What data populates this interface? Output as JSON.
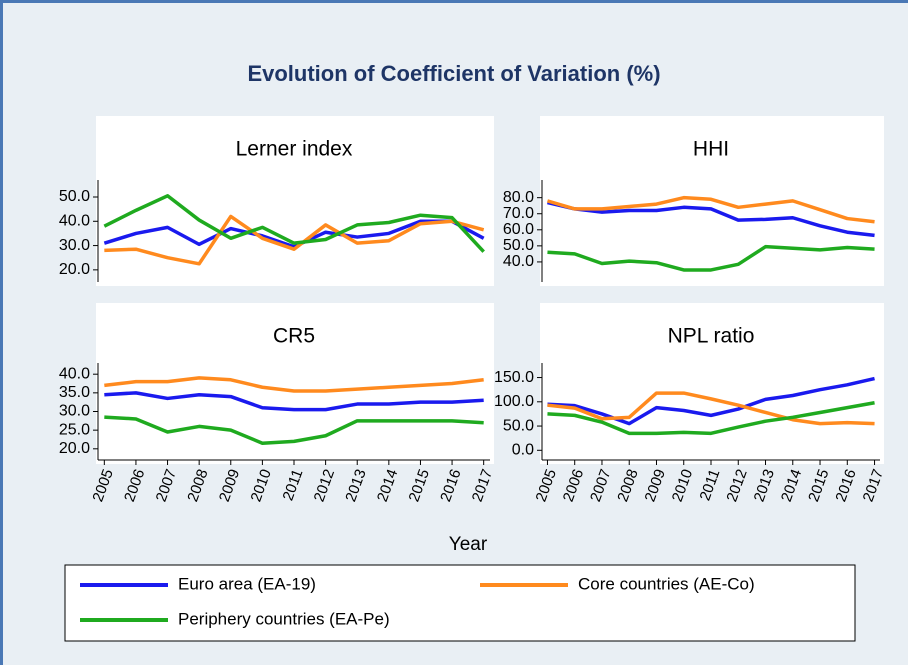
{
  "title": "Evolution of Coefficient of Variation (%)",
  "xlabel": "Year",
  "chart_data": [
    {
      "type": "line",
      "title": "Lerner index",
      "x": [
        2005,
        2006,
        2007,
        2008,
        2009,
        2010,
        2011,
        2012,
        2013,
        2014,
        2015,
        2016,
        2017
      ],
      "xlim": [
        2004.8,
        2017.2
      ],
      "ylim": [
        15,
        57
      ],
      "yticks": [
        {
          "value": 20,
          "label": "20.0"
        },
        {
          "value": 30,
          "label": "30.0"
        },
        {
          "value": 40,
          "label": "40.0"
        },
        {
          "value": 50,
          "label": "50.0"
        }
      ],
      "series": [
        {
          "name": "Euro area (EA-19)",
          "color": "#1a1aee",
          "values": [
            31,
            35,
            37.5,
            30.5,
            37,
            34,
            29.5,
            35.5,
            33.5,
            35,
            40,
            40,
            33
          ]
        },
        {
          "name": "Core countries (AE-Co)",
          "color": "#ff8a1e",
          "values": [
            28,
            28.5,
            25,
            22.5,
            42,
            33,
            28.5,
            38.5,
            31,
            32,
            39,
            40,
            36.5
          ]
        },
        {
          "name": "Periphery countries (EA-Pe)",
          "color": "#1faa1f",
          "values": [
            38,
            44.5,
            50.5,
            40.5,
            33,
            37.5,
            31,
            32.5,
            38.5,
            39.5,
            42.5,
            41.5,
            27.5
          ]
        }
      ]
    },
    {
      "type": "line",
      "title": "HHI",
      "x": [
        2005,
        2006,
        2007,
        2008,
        2009,
        2010,
        2011,
        2012,
        2013,
        2014,
        2015,
        2016,
        2017
      ],
      "xlim": [
        2004.8,
        2017.2
      ],
      "ylim": [
        27.5,
        91
      ],
      "yticks": [
        {
          "value": 40,
          "label": "40.0"
        },
        {
          "value": 50,
          "label": "50.0"
        },
        {
          "value": 60,
          "label": "60.0"
        },
        {
          "value": 70,
          "label": "70.0"
        },
        {
          "value": 80,
          "label": "80.0"
        }
      ],
      "series": [
        {
          "name": "Euro area (EA-19)",
          "color": "#1a1aee",
          "values": [
            77,
            73,
            71,
            72,
            72,
            74,
            73,
            66,
            66.5,
            67.5,
            62.5,
            58.5,
            56.5
          ]
        },
        {
          "name": "Core countries (AE-Co)",
          "color": "#ff8a1e",
          "values": [
            78,
            73,
            73,
            74.5,
            76,
            80,
            79,
            74,
            76,
            78,
            72.5,
            67,
            65
          ]
        },
        {
          "name": "Periphery countries (EA-Pe)",
          "color": "#1faa1f",
          "values": [
            46,
            45,
            39,
            40.5,
            39.5,
            35,
            35,
            38.5,
            49.5,
            48.5,
            47.5,
            49,
            48
          ]
        }
      ]
    },
    {
      "type": "line",
      "title": "CR5",
      "x": [
        2005,
        2006,
        2007,
        2008,
        2009,
        2010,
        2011,
        2012,
        2013,
        2014,
        2015,
        2016,
        2017
      ],
      "xlim": [
        2004.8,
        2017.2
      ],
      "ylim": [
        17,
        43
      ],
      "xticks": [
        2005,
        2006,
        2007,
        2008,
        2009,
        2010,
        2011,
        2012,
        2013,
        2014,
        2015,
        2016,
        2017
      ],
      "yticks": [
        {
          "value": 20,
          "label": "20.0"
        },
        {
          "value": 25,
          "label": "25.0"
        },
        {
          "value": 30,
          "label": "30.0"
        },
        {
          "value": 35,
          "label": "35.0"
        },
        {
          "value": 40,
          "label": "40.0"
        }
      ],
      "series": [
        {
          "name": "Euro area (EA-19)",
          "color": "#1a1aee",
          "values": [
            34.5,
            35,
            33.5,
            34.5,
            34,
            31,
            30.5,
            30.5,
            32,
            32,
            32.5,
            32.5,
            33
          ]
        },
        {
          "name": "Core countries (AE-Co)",
          "color": "#ff8a1e",
          "values": [
            37,
            38,
            38,
            39,
            38.5,
            36.5,
            35.5,
            35.5,
            36,
            36.5,
            37,
            37.5,
            38.5
          ]
        },
        {
          "name": "Periphery countries (EA-Pe)",
          "color": "#1faa1f",
          "values": [
            28.5,
            28,
            24.5,
            26,
            25,
            21.5,
            22,
            23.5,
            27.5,
            27.5,
            27.5,
            27.5,
            27
          ]
        }
      ]
    },
    {
      "type": "line",
      "title": "NPL ratio",
      "x": [
        2005,
        2006,
        2007,
        2008,
        2009,
        2010,
        2011,
        2012,
        2013,
        2014,
        2015,
        2016,
        2017
      ],
      "xlim": [
        2004.8,
        2017.2
      ],
      "ylim": [
        -20,
        180
      ],
      "xticks": [
        2005,
        2006,
        2007,
        2008,
        2009,
        2010,
        2011,
        2012,
        2013,
        2014,
        2015,
        2016,
        2017
      ],
      "yticks": [
        {
          "value": 0,
          "label": "0.0"
        },
        {
          "value": 50,
          "label": "50.0"
        },
        {
          "value": 100,
          "label": "100.0"
        },
        {
          "value": 150,
          "label": "150.0"
        }
      ],
      "series": [
        {
          "name": "Euro area (EA-19)",
          "color": "#1a1aee",
          "values": [
            95,
            92,
            75,
            55,
            88,
            82,
            72,
            85,
            105,
            113,
            125,
            135,
            148
          ]
        },
        {
          "name": "Core countries (AE-Co)",
          "color": "#ff8a1e",
          "values": [
            93,
            87,
            65,
            68,
            118,
            118,
            106,
            93,
            78,
            63,
            55,
            57,
            55
          ]
        },
        {
          "name": "Periphery countries (EA-Pe)",
          "color": "#1faa1f",
          "values": [
            75,
            72,
            58,
            35,
            35,
            37,
            35,
            48,
            60,
            68,
            78,
            88,
            98
          ]
        }
      ]
    }
  ]
}
